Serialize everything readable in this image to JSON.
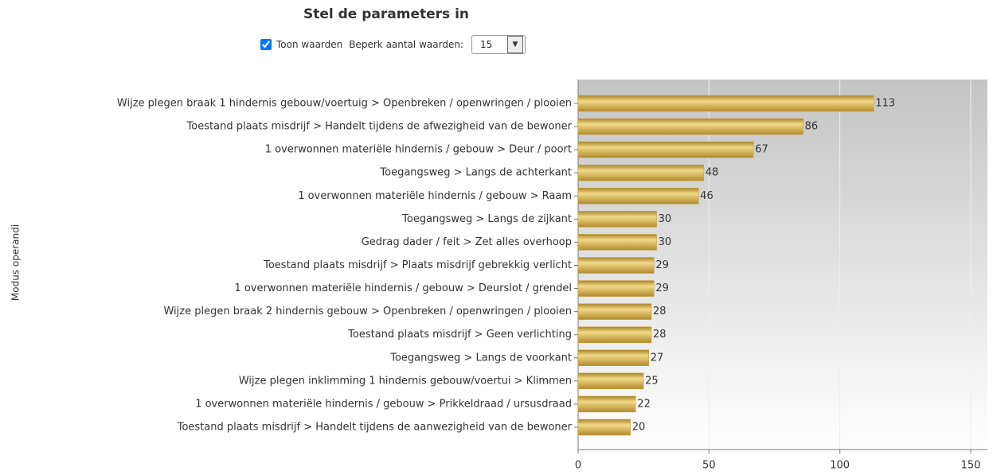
{
  "controls": {
    "title": "Stel de parameters in",
    "show_values_label": "Toon waarden",
    "show_values": true,
    "limit_label": "Beperk aantal waarden:",
    "limit": 15
  },
  "chart_data": {
    "type": "bar",
    "orientation": "horizontal",
    "ylabel": "Modus operandi",
    "categories": [
      "Wijze plegen braak 1 hindernis gebouw/voertuig > Openbreken / openwringen / plooien",
      "Toestand plaats misdrijf > Handelt tijdens de afwezigheid van de bewoner",
      "1 overwonnen materiële hindernis / gebouw > Deur / poort",
      "Toegangsweg > Langs de achterkant",
      "1 overwonnen materiële hindernis / gebouw > Raam",
      "Toegangsweg > Langs de zijkant",
      "Gedrag dader / feit > Zet alles overhoop",
      "Toestand plaats misdrijf > Plaats misdrijf gebrekkig verlicht",
      "1 overwonnen materiële hindernis / gebouw > Deurslot / grendel",
      "Wijze plegen braak 2 hindernis gebouw > Openbreken / openwringen / plooien",
      "Toestand plaats misdrijf > Geen verlichting",
      "Toegangsweg > Langs de voorkant",
      "Wijze plegen inklimming 1 hindernis gebouw/voertui > Klimmen",
      "1 overwonnen materiële hindernis / gebouw > Prikkeldraad / ursusdraad",
      "Toestand plaats misdrijf > Handelt tijdens de aanwezigheid van de bewoner"
    ],
    "values": [
      113,
      86,
      67,
      48,
      46,
      30,
      30,
      29,
      29,
      28,
      28,
      27,
      25,
      22,
      20
    ],
    "color": "#c9a13f",
    "xlim": [
      0,
      150
    ],
    "xticks": [
      0,
      50,
      100,
      150
    ],
    "grid": true
  }
}
